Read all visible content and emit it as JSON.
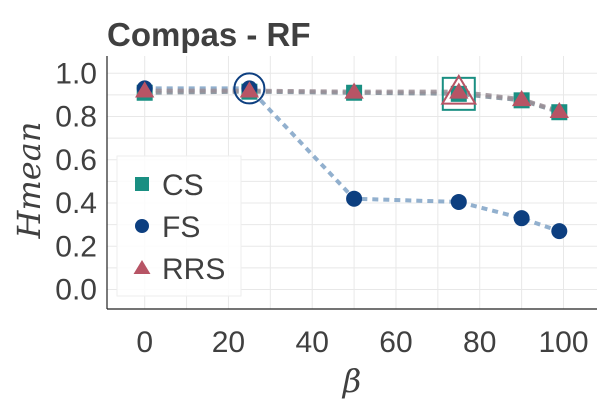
{
  "chart_data": {
    "type": "line",
    "title": "Compas - RF",
    "xlabel": "β",
    "ylabel": "Hmean",
    "xlim": [
      -9,
      108
    ],
    "ylim": [
      -0.09,
      1.08
    ],
    "xticks": [
      0,
      20,
      40,
      60,
      80,
      100
    ],
    "yticks": [
      0.0,
      0.2,
      0.4,
      0.6,
      0.8,
      1.0
    ],
    "x": [
      0,
      25,
      50,
      75,
      90,
      99
    ],
    "grid": true,
    "legend_position": "center-left",
    "series": [
      {
        "name": "CS",
        "marker": "square",
        "color": "#1a8f82",
        "line_color": "#7d8a95",
        "values": [
          0.91,
          0.915,
          0.91,
          0.905,
          0.875,
          0.82
        ],
        "highlight_index": 3
      },
      {
        "name": "FS",
        "marker": "circle",
        "color": "#0d3f80",
        "line_color": "#7fa2c6",
        "values": [
          0.93,
          0.93,
          0.42,
          0.405,
          0.33,
          0.27
        ],
        "highlight_index": 1
      },
      {
        "name": "RRS",
        "marker": "triangle",
        "color": "#b75465",
        "line_color": "#9a8e95",
        "values": [
          0.92,
          0.92,
          0.915,
          0.915,
          0.88,
          0.825
        ],
        "highlight_index": 3
      }
    ]
  }
}
